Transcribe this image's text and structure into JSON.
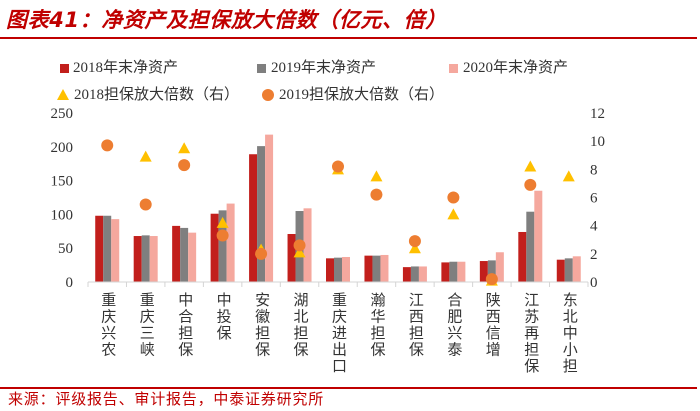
{
  "colors": {
    "title": "#c00000",
    "rule": "#c00000",
    "source": "#c00000",
    "bar_2018": "#c21f1c",
    "bar_2019": "#7f7f7f",
    "bar_2020": "#f5a89e",
    "marker_2018": "#ffc000",
    "marker_2019": "#ed7d31",
    "axis": "#d4d4d4",
    "text": "#333333"
  },
  "chart_data": {
    "type": "bar",
    "title": "图表41：净资产及担保放大倍数（亿元、倍）",
    "source": "来源：评级报告、审计报告，中泰证券研究所",
    "categories": [
      "重庆兴农",
      "重庆三峡",
      "中合担保",
      "中投保",
      "安徽担保",
      "湖北担保",
      "重庆进出口",
      "瀚华担保",
      "江西担保",
      "合肥兴泰",
      "陕西信增",
      "江苏再担保",
      "东北中小担"
    ],
    "series": [
      {
        "name": "2018年末净资产",
        "type": "bar",
        "values": [
          98,
          68,
          83,
          101,
          189,
          71,
          35,
          39,
          22,
          29,
          31,
          74,
          33
        ]
      },
      {
        "name": "2019年末净资产",
        "type": "bar",
        "values": [
          98,
          69,
          80,
          106,
          201,
          105,
          36,
          39,
          23,
          30,
          32,
          104,
          35
        ]
      },
      {
        "name": "2020年末净资产",
        "type": "bar",
        "values": [
          93,
          68,
          73,
          116,
          218,
          109,
          37,
          40,
          23,
          30,
          44,
          135,
          38
        ]
      }
    ],
    "y2_series": [
      {
        "name": "2018担保放大倍数（右）",
        "type": "scatter",
        "marker": "triangle",
        "values": [
          null,
          8.9,
          9.5,
          4.2,
          2.3,
          2.1,
          8.0,
          7.5,
          2.4,
          4.8,
          0.1,
          8.2,
          7.5
        ]
      },
      {
        "name": "2019担保放大倍数（右）",
        "type": "scatter",
        "marker": "circle",
        "values": [
          9.7,
          5.5,
          8.3,
          3.3,
          2.0,
          2.6,
          8.2,
          6.2,
          2.9,
          6.0,
          0.2,
          6.9,
          null
        ]
      }
    ],
    "y_left": {
      "min": 0,
      "max": 250,
      "ticks": [
        0,
        50,
        100,
        150,
        200,
        250
      ]
    },
    "y_right": {
      "min": 0,
      "max": 12,
      "ticks": [
        0,
        2,
        4,
        6,
        8,
        10,
        12
      ]
    },
    "grid": false,
    "legend_position": "top"
  }
}
